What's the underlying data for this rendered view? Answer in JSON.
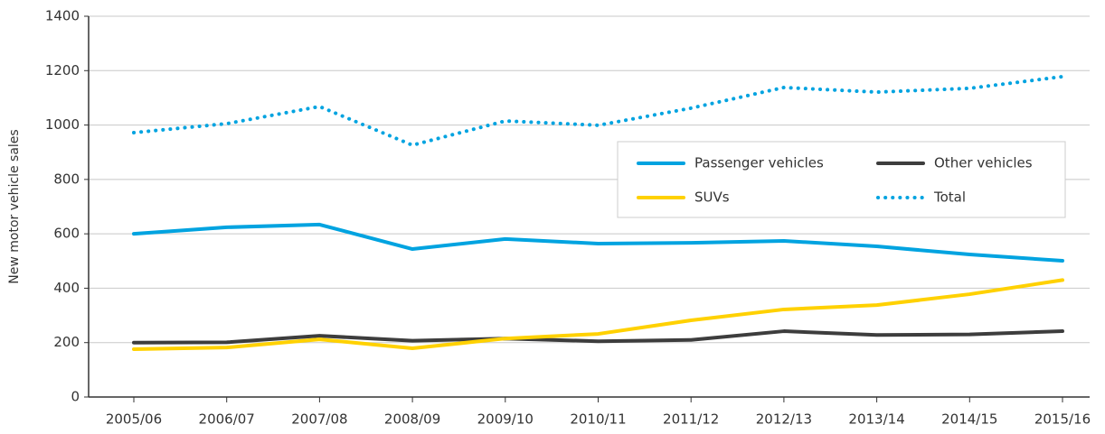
{
  "chart_data": {
    "type": "line",
    "y_label": "New motor vehicle sales",
    "categories": [
      "2005/06",
      "2006/07",
      "2007/08",
      "2008/09",
      "2009/10",
      "2010/11",
      "2011/12",
      "2012/13",
      "2013/14",
      "2014/15",
      "2015/16"
    ],
    "series": [
      {
        "name": "Passenger vehicles",
        "color": "#00a3e0",
        "style": "solid",
        "values": [
          600,
          624,
          634,
          544,
          581,
          564,
          567,
          574,
          554,
          524,
          501
        ]
      },
      {
        "name": "Other vehicles",
        "color": "#3d3d3d",
        "style": "solid",
        "values": [
          200,
          201,
          225,
          207,
          215,
          205,
          210,
          242,
          228,
          230,
          242
        ]
      },
      {
        "name": "SUVs",
        "color": "#ffd100",
        "style": "solid",
        "values": [
          176,
          182,
          212,
          179,
          215,
          232,
          282,
          322,
          338,
          378,
          430
        ]
      },
      {
        "name": "Total",
        "color": "#00a3e0",
        "style": "dotted",
        "values": [
          972,
          1005,
          1068,
          926,
          1015,
          999,
          1062,
          1138,
          1121,
          1135,
          1178
        ]
      }
    ],
    "ylim": [
      0,
      1400
    ],
    "yticks": [
      0,
      200,
      400,
      600,
      800,
      1000,
      1200,
      1400
    ],
    "grid": true
  }
}
